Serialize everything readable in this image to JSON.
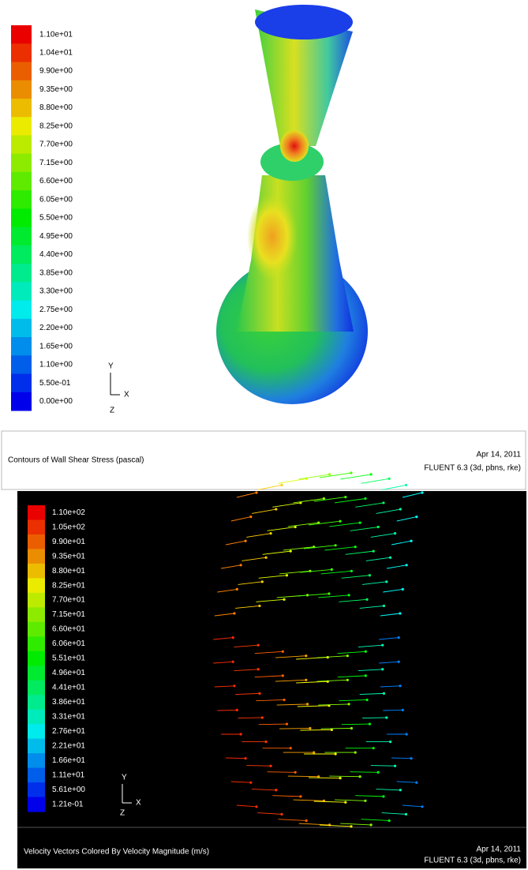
{
  "panels": [
    {
      "legend_labels": [
        "1.10e+01",
        "1.04e+01",
        "9.90e+00",
        "9.35e+00",
        "8.80e+00",
        "8.25e+00",
        "7.70e+00",
        "7.15e+00",
        "6.60e+00",
        "6.05e+00",
        "5.50e+00",
        "4.95e+00",
        "4.40e+00",
        "3.85e+00",
        "3.30e+00",
        "2.75e+00",
        "2.20e+00",
        "1.65e+00",
        "1.10e+00",
        "5.50e-01",
        "0.00e+00"
      ],
      "axes": {
        "y": "Y",
        "x": "X",
        "z": "Z"
      },
      "caption": "Contours of Wall Shear Stress (pascal)",
      "date": "Apr 14, 2011",
      "version": "FLUENT 6.3 (3d, pbns, rke)"
    },
    {
      "legend_labels": [
        "1.10e+02",
        "1.05e+02",
        "9.90e+01",
        "9.35e+01",
        "8.80e+01",
        "8.25e+01",
        "7.70e+01",
        "7.15e+01",
        "6.60e+01",
        "6.06e+01",
        "5.51e+01",
        "4.96e+01",
        "4.41e+01",
        "3.86e+01",
        "3.31e+01",
        "2.76e+01",
        "2.21e+01",
        "1.66e+01",
        "1.11e+01",
        "5.61e+00",
        "1.21e-01"
      ],
      "axes": {
        "y": "Y",
        "x": "X",
        "z": "Z"
      },
      "caption": "Velocity Vectors Colored By Velocity Magnitude (m/s)",
      "date": "Apr 14, 2011",
      "version": "FLUENT 6.3 (3d, pbns, rke)"
    }
  ]
}
